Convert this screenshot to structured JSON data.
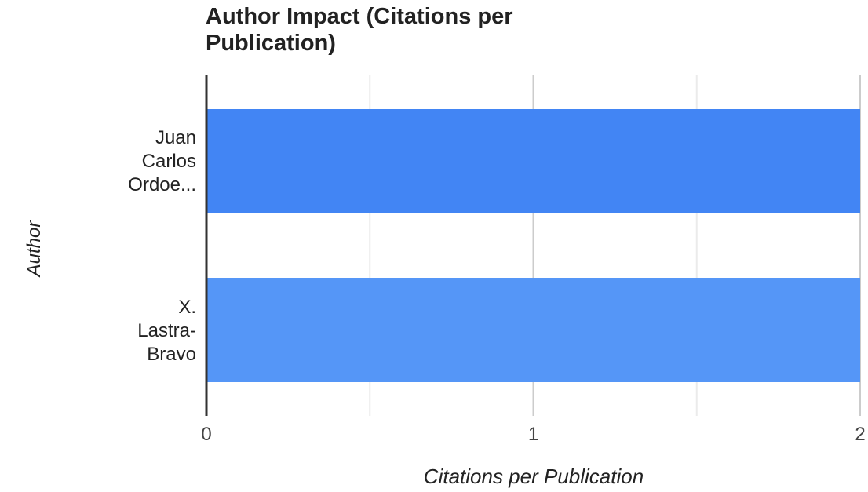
{
  "chart_data": {
    "type": "bar",
    "orientation": "horizontal",
    "title": "Author Impact (Citations per Publication)",
    "title_lines": [
      "Author Impact (Citations per",
      "Publication)"
    ],
    "xlabel": "Citations per Publication",
    "ylabel": "Author",
    "categories": [
      "Juan Carlos Ordoe...",
      "X. Lastra-Bravo"
    ],
    "category_lines": [
      [
        "Juan",
        "Carlos",
        "Ordoe..."
      ],
      [
        "X.",
        "Lastra-",
        "Bravo"
      ]
    ],
    "values": [
      2,
      2
    ],
    "bar_colors": [
      "#4285f4",
      "#5596f7"
    ],
    "xlim": [
      0,
      2
    ],
    "x_ticks": [
      "0",
      "1",
      "2"
    ],
    "grid": true,
    "legend": "none"
  }
}
